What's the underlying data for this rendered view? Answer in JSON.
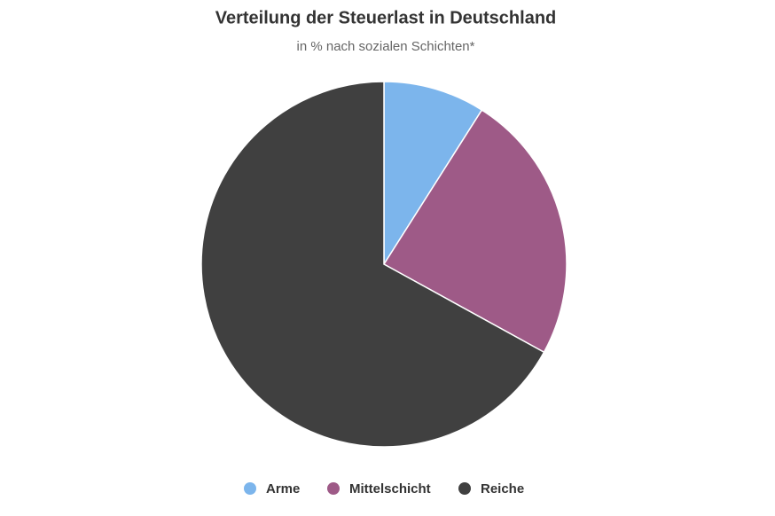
{
  "chart_data": {
    "type": "pie",
    "title": "Verteilung der Steuerlast in Deutschland",
    "subtitle": "in % nach sozialen Schichten*",
    "categories": [
      "Arme",
      "Mittelschicht",
      "Reiche"
    ],
    "values": [
      9,
      24,
      67
    ],
    "colors": [
      "#7cb5ec",
      "#9e5a87",
      "#404040"
    ],
    "legend": "bottom"
  }
}
